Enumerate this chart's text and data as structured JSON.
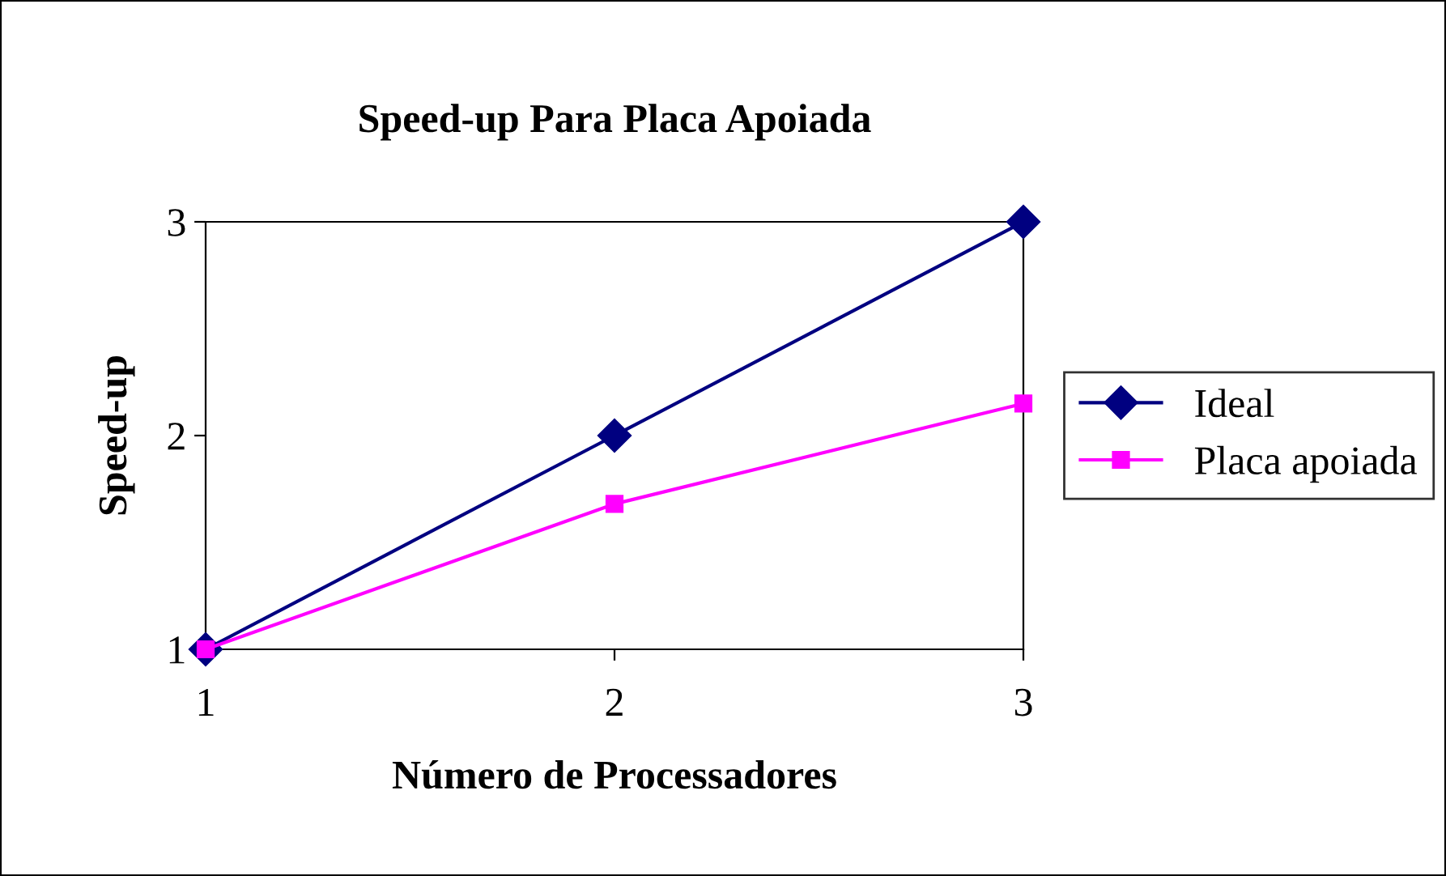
{
  "chart_data": {
    "type": "line",
    "title": "Speed-up Para Placa Apoiada",
    "xlabel": "Número de Processadores",
    "ylabel": "Speed-up",
    "x": [
      1,
      2,
      3
    ],
    "xlim": [
      1,
      3
    ],
    "xticks": [
      1,
      2,
      3
    ],
    "ylim": [
      1,
      3
    ],
    "yticks": [
      1,
      2,
      3
    ],
    "grid": false,
    "legend": "right",
    "series": [
      {
        "name": "Ideal",
        "color": "#000080",
        "marker": "diamond",
        "values": [
          1,
          2,
          3
        ]
      },
      {
        "name": "Placa apoiada",
        "color": "#ff00ff",
        "marker": "square",
        "values": [
          1,
          1.68,
          2.15
        ]
      }
    ]
  }
}
